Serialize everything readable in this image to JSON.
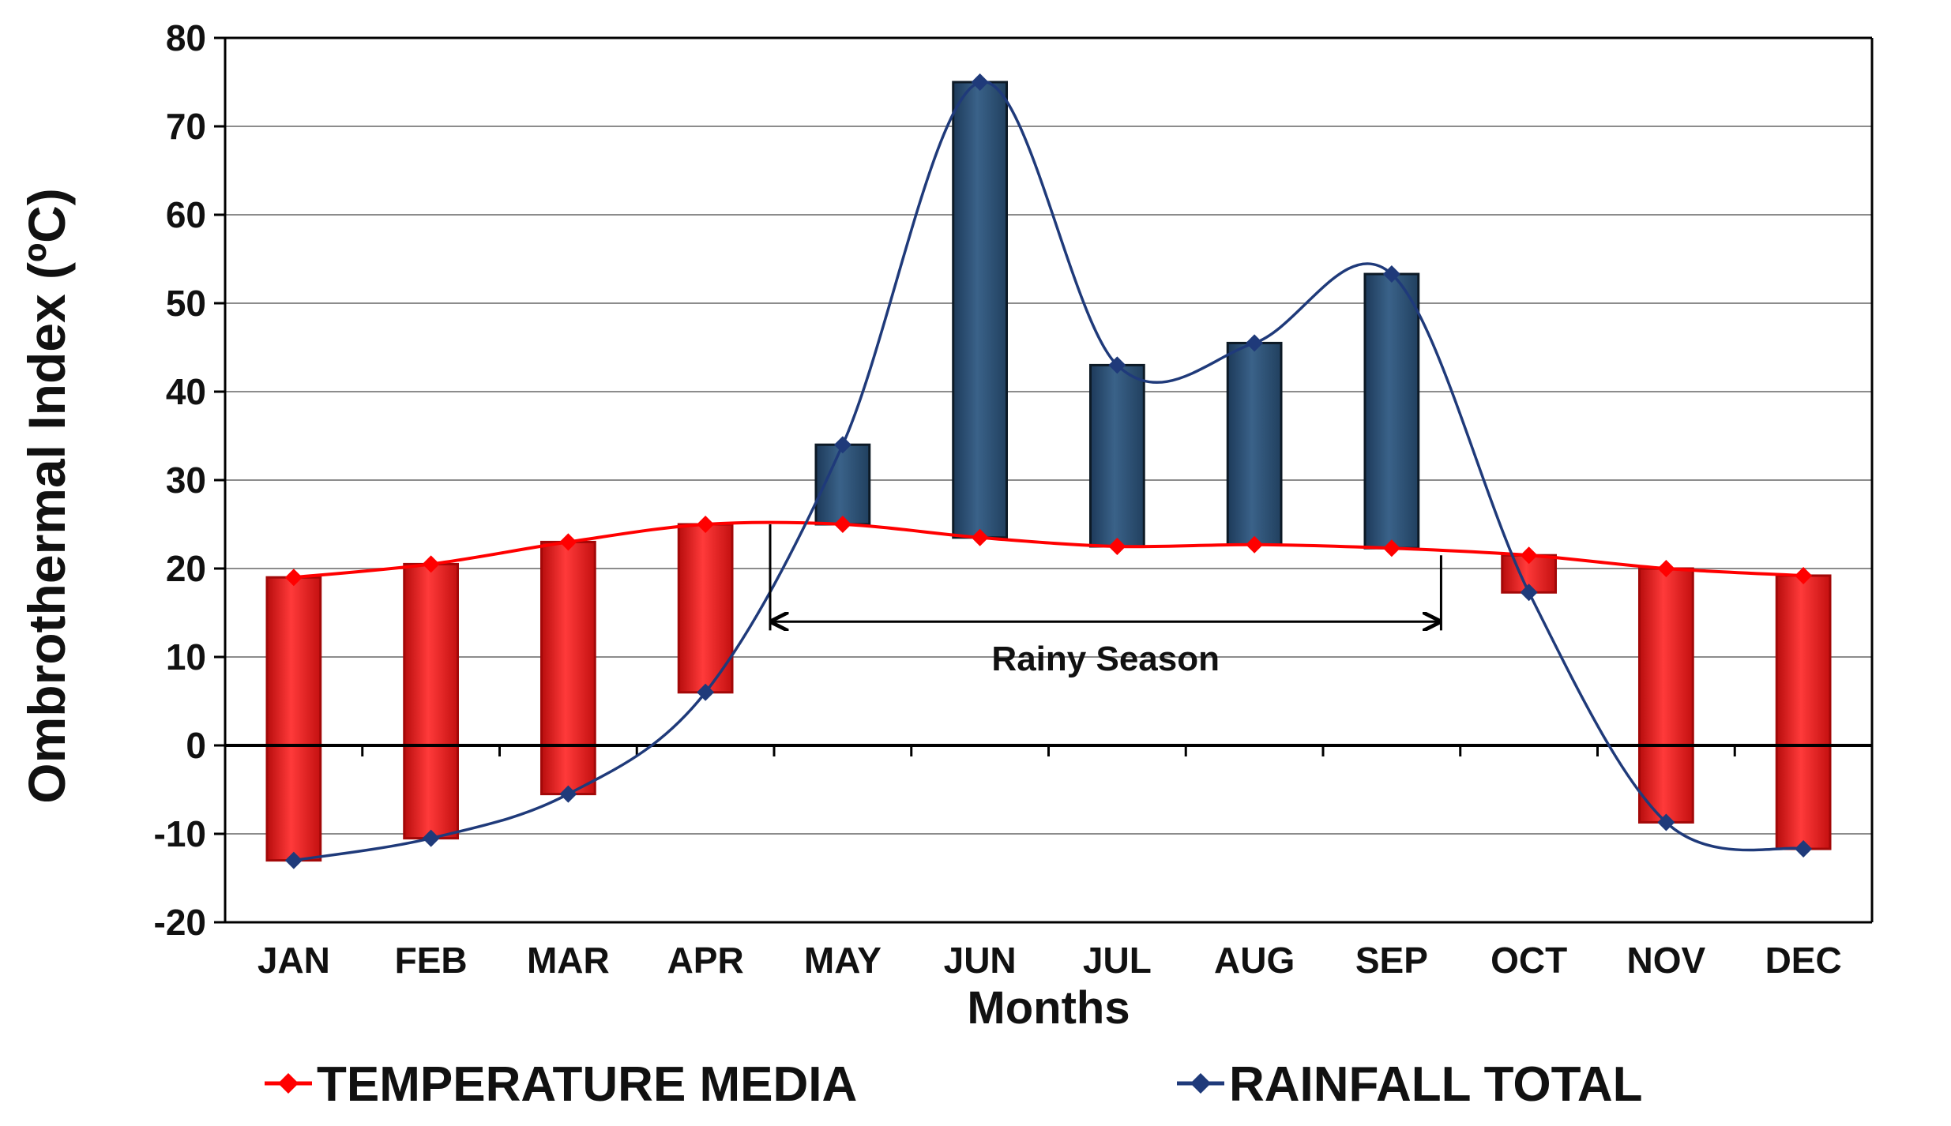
{
  "chart_data": {
    "type": "bar",
    "title": "",
    "xlabel": "Months",
    "ylabel": "Ombrothermal Index (ºC)",
    "ylim": [
      -20,
      80
    ],
    "yticks": [
      -20,
      -10,
      0,
      10,
      20,
      30,
      40,
      50,
      60,
      70,
      80
    ],
    "grid": true,
    "legend_position": "bottom",
    "categories": [
      "JAN",
      "FEB",
      "MAR",
      "APR",
      "MAY",
      "JUN",
      "JUL",
      "AUG",
      "SEP",
      "OCT",
      "NOV",
      "DEC"
    ],
    "series": [
      {
        "name": "TEMPERATURE MEDIA",
        "color": "#ff0000",
        "marker": "diamond",
        "values": [
          19,
          20.5,
          23,
          25,
          25,
          23.5,
          22.5,
          22.7,
          22.3,
          21.5,
          20,
          19.2
        ]
      },
      {
        "name": "RAINFALL TOTAL",
        "color": "#1f3a7a",
        "marker": "diamond",
        "values": [
          -13,
          -10.5,
          -5.5,
          6,
          34,
          75,
          43,
          45.5,
          53.3,
          17.3,
          -8.7,
          -11.7
        ]
      }
    ],
    "bar_colors": {
      "deficit": "#ee1c1c",
      "surplus": "#2c5075"
    },
    "annotation": {
      "text": "Rainy Season",
      "from_category": "MAY",
      "to_category": "OCT",
      "y": 14
    }
  }
}
